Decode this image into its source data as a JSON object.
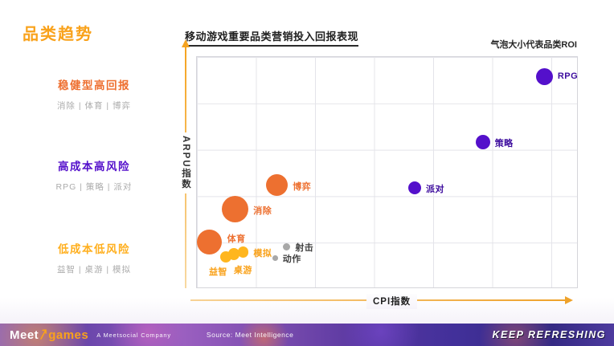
{
  "page": {
    "title": "品类趋势",
    "title_color": "#f9a21b"
  },
  "chart": {
    "title": "移动游戏重要品类营销投入回报表现",
    "bubble_note": "气泡大小代表品类ROI",
    "xlabel": "CPI指数",
    "ylabel": "ARPU指数"
  },
  "legend_panel": {
    "groups": [
      {
        "title": "稳健型高回报",
        "sub": "消除 | 体育 | 博弈",
        "color": "#ee7031"
      },
      {
        "title": "高成本高风险",
        "sub": "RPG | 策略 | 派对",
        "color": "#5410cb"
      },
      {
        "title": "低成本低风险",
        "sub": "益智 | 桌游 | 模拟",
        "color": "#ffaf1e"
      }
    ]
  },
  "chart_data": {
    "type": "bubble",
    "title": "移动游戏重要品类营销投入回报表现",
    "note": "气泡大小代表品类ROI（bubble size = category ROI）",
    "xlabel": "CPI指数",
    "ylabel": "ARPU指数",
    "axis_ticks": "none (no numeric tick labels shown)",
    "grid": true,
    "x_gridline_count": 6,
    "y_gridline_count": 4,
    "colors": {
      "orange": "#ed7030",
      "yellow": "#ffb61e",
      "purple": "#5410cb",
      "gray": "#a8a8a8"
    },
    "label_colors": {
      "orange": "#ed7030",
      "yellow": "#f9a21b",
      "purple": "#3d0d9e",
      "gray": "#3f3f3f"
    },
    "points": [
      {
        "label": "RPG",
        "group": "purple",
        "x_pct": 91.4,
        "y_pct": 8.7,
        "r": 10.5,
        "label_side": "right"
      },
      {
        "label": "策略",
        "group": "purple",
        "x_pct": 75.2,
        "y_pct": 37.0,
        "r": 9,
        "label_side": "right"
      },
      {
        "label": "派对",
        "group": "purple",
        "x_pct": 57.3,
        "y_pct": 56.7,
        "r": 8,
        "label_side": "right"
      },
      {
        "label": "博弈",
        "group": "orange",
        "x_pct": 21.1,
        "y_pct": 55.7,
        "r": 13.5,
        "label_side": "right"
      },
      {
        "label": "消除",
        "group": "orange",
        "x_pct": 10.1,
        "y_pct": 66.1,
        "r": 16.5,
        "label_side": "right"
      },
      {
        "label": "体育",
        "group": "orange",
        "x_pct": 3.2,
        "y_pct": 80.3,
        "r": 15.5,
        "label_side": "right-up"
      },
      {
        "label": "模拟",
        "group": "yellow",
        "x_pct": 12.2,
        "y_pct": 84.7,
        "r": 6.7,
        "label_side": "right"
      },
      {
        "label": "桌游",
        "group": "yellow",
        "x_pct": 9.7,
        "y_pct": 85.5,
        "r": 7.3,
        "label_side": "below-right"
      },
      {
        "label": "益智",
        "group": "yellow",
        "x_pct": 7.6,
        "y_pct": 86.7,
        "r": 7,
        "label_side": "below-left"
      },
      {
        "label": "射击",
        "group": "gray",
        "x_pct": 23.6,
        "y_pct": 82.4,
        "r": 4.7,
        "label_side": "right"
      },
      {
        "label": "动作",
        "group": "gray",
        "x_pct": 20.6,
        "y_pct": 87.2,
        "r": 3.3,
        "label_side": "right"
      }
    ]
  },
  "footer": {
    "logo_meet": "Meet",
    "logo_games": "games",
    "company": "A Meetsocial Company",
    "source": "Source: Meet Intelligence",
    "slogan": "KEEP REFRESHING"
  }
}
